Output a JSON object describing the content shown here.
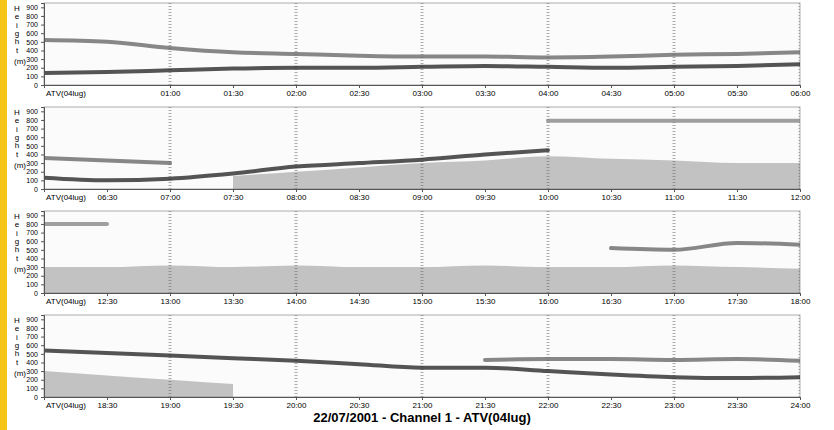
{
  "title": "22/07/2001 - Channel 1 - ATV(04lug)",
  "chart_data": [
    {
      "type": "line",
      "x_label": "ATV(04lug)",
      "y_label": "Height (m)",
      "grid": true,
      "x": [
        0,
        0.5,
        1,
        1.5,
        2,
        2.5,
        3,
        3.5,
        4,
        4.5,
        5,
        5.5,
        6
      ],
      "xlim": [
        0,
        6
      ],
      "xticks": [
        {
          "value": 1,
          "label": "01:00"
        },
        {
          "value": 1.5,
          "label": "01:30"
        },
        {
          "value": 2,
          "label": "02:00"
        },
        {
          "value": 2.5,
          "label": "02:30"
        },
        {
          "value": 3,
          "label": "03:00"
        },
        {
          "value": 3.5,
          "label": "03:30"
        },
        {
          "value": 4,
          "label": "04:00"
        },
        {
          "value": 4.5,
          "label": "04:30"
        },
        {
          "value": 5,
          "label": "05:00"
        },
        {
          "value": 5.5,
          "label": "05:30"
        },
        {
          "value": 6,
          "label": "06:00"
        }
      ],
      "ylim": [
        0,
        950
      ],
      "yticks": [
        0,
        100,
        200,
        300,
        400,
        500,
        600,
        700,
        800,
        900
      ],
      "series": [
        {
          "type": "line",
          "color": "#2a2a2a",
          "values": [
            140,
            150,
            170,
            190,
            200,
            200,
            210,
            220,
            210,
            200,
            210,
            220,
            240
          ]
        },
        {
          "type": "line",
          "color": "#6a6a6a",
          "values": [
            520,
            500,
            430,
            380,
            360,
            340,
            330,
            330,
            320,
            330,
            350,
            360,
            380
          ]
        }
      ]
    },
    {
      "type": "line",
      "x_label": "ATV(04lug)",
      "y_label": "Height (m)",
      "grid": true,
      "x": [
        6,
        6.5,
        7,
        7.5,
        8,
        8.5,
        9,
        9.5,
        10,
        10.5,
        11,
        11.5,
        12
      ],
      "xlim": [
        6,
        12
      ],
      "xticks": [
        {
          "value": 6.5,
          "label": "06:30"
        },
        {
          "value": 7,
          "label": "07:00"
        },
        {
          "value": 7.5,
          "label": "07:30"
        },
        {
          "value": 8,
          "label": "08:00"
        },
        {
          "value": 8.5,
          "label": "08:30"
        },
        {
          "value": 9,
          "label": "09:00"
        },
        {
          "value": 9.5,
          "label": "09:30"
        },
        {
          "value": 10,
          "label": "10:00"
        },
        {
          "value": 10.5,
          "label": "10:30"
        },
        {
          "value": 11,
          "label": "11:00"
        },
        {
          "value": 11.5,
          "label": "11:30"
        },
        {
          "value": 12,
          "label": "12:00"
        }
      ],
      "ylim": [
        0,
        950
      ],
      "yticks": [
        0,
        100,
        200,
        300,
        400,
        500,
        600,
        700,
        800,
        900
      ],
      "series": [
        {
          "type": "area",
          "color": "#6e6e6e",
          "values": [
            null,
            null,
            null,
            150,
            200,
            250,
            300,
            330,
            380,
            350,
            330,
            300,
            300
          ]
        },
        {
          "type": "line",
          "color": "#2a2a2a",
          "values": [
            130,
            100,
            120,
            180,
            260,
            300,
            340,
            400,
            450,
            null,
            null,
            null,
            null
          ]
        },
        {
          "type": "line",
          "color": "#6a6a6a",
          "values": [
            360,
            330,
            300,
            null,
            null,
            null,
            null,
            null,
            null,
            null,
            null,
            null,
            null
          ]
        },
        {
          "type": "line",
          "color": "#888888",
          "values": [
            null,
            null,
            null,
            null,
            null,
            null,
            null,
            null,
            790,
            790,
            790,
            790,
            790
          ]
        }
      ]
    },
    {
      "type": "line",
      "x_label": "ATV(04lug)",
      "y_label": "Height (m)",
      "grid": true,
      "x": [
        12,
        12.5,
        13,
        13.5,
        14,
        14.5,
        15,
        15.5,
        16,
        16.5,
        17,
        17.5,
        18
      ],
      "xlim": [
        12,
        18
      ],
      "xticks": [
        {
          "value": 12.5,
          "label": "12:30"
        },
        {
          "value": 13,
          "label": "13:00"
        },
        {
          "value": 13.5,
          "label": "13:30"
        },
        {
          "value": 14,
          "label": "14:00"
        },
        {
          "value": 14.5,
          "label": "14:30"
        },
        {
          "value": 15,
          "label": "15:00"
        },
        {
          "value": 15.5,
          "label": "15:30"
        },
        {
          "value": 16,
          "label": "16:00"
        },
        {
          "value": 16.5,
          "label": "16:30"
        },
        {
          "value": 17,
          "label": "17:00"
        },
        {
          "value": 17.5,
          "label": "17:30"
        },
        {
          "value": 18,
          "label": "18:00"
        }
      ],
      "ylim": [
        0,
        950
      ],
      "yticks": [
        0,
        100,
        200,
        300,
        400,
        500,
        600,
        700,
        800,
        900
      ],
      "series": [
        {
          "type": "area",
          "color": "#6e6e6e",
          "values": [
            300,
            300,
            320,
            300,
            320,
            300,
            300,
            320,
            300,
            300,
            320,
            300,
            280
          ]
        },
        {
          "type": "line",
          "color": "#6a6a6a",
          "values": [
            null,
            null,
            null,
            null,
            null,
            null,
            null,
            null,
            null,
            520,
            500,
            580,
            560
          ]
        },
        {
          "type": "line",
          "color": "#888888",
          "values": [
            800,
            800,
            null,
            null,
            null,
            null,
            null,
            null,
            null,
            null,
            null,
            null,
            null
          ]
        }
      ]
    },
    {
      "type": "line",
      "x_label": "ATV(04lug)",
      "y_label": "Height (m)",
      "grid": true,
      "x": [
        18,
        18.5,
        19,
        19.5,
        20,
        20.5,
        21,
        21.5,
        22,
        22.5,
        23,
        23.5,
        24
      ],
      "xlim": [
        18,
        24
      ],
      "xticks": [
        {
          "value": 18.5,
          "label": "18:30"
        },
        {
          "value": 19,
          "label": "19:00"
        },
        {
          "value": 19.5,
          "label": "19:30"
        },
        {
          "value": 20,
          "label": "20:00"
        },
        {
          "value": 20.5,
          "label": "20:30"
        },
        {
          "value": 21,
          "label": "21:00"
        },
        {
          "value": 21.5,
          "label": "21:30"
        },
        {
          "value": 22,
          "label": "22:00"
        },
        {
          "value": 22.5,
          "label": "22:30"
        },
        {
          "value": 23,
          "label": "23:00"
        },
        {
          "value": 23.5,
          "label": "23:30"
        },
        {
          "value": 24,
          "label": "24:00"
        }
      ],
      "ylim": [
        0,
        950
      ],
      "yticks": [
        0,
        100,
        200,
        300,
        400,
        500,
        600,
        700,
        800,
        900
      ],
      "series": [
        {
          "type": "area",
          "color": "#6e6e6e",
          "values": [
            300,
            250,
            200,
            150,
            null,
            null,
            null,
            null,
            null,
            null,
            null,
            null,
            null
          ]
        },
        {
          "type": "line",
          "color": "#2a2a2a",
          "values": [
            540,
            510,
            480,
            450,
            420,
            380,
            340,
            340,
            300,
            260,
            230,
            220,
            230
          ]
        },
        {
          "type": "line",
          "color": "#6a6a6a",
          "values": [
            null,
            null,
            null,
            null,
            null,
            null,
            null,
            430,
            440,
            440,
            430,
            440,
            420
          ]
        }
      ]
    }
  ]
}
